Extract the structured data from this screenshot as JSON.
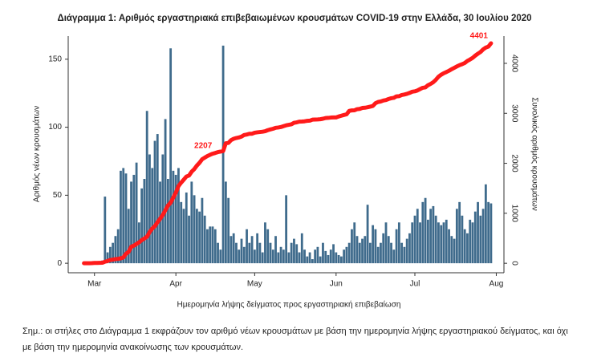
{
  "chart_data": {
    "type": "bar",
    "title": "Διάγραμμα 1: Αριθμός εργαστηριακά επιβεβαιωμένων κρουσμάτων COVID-19 στην Ελλάδα, 30 Ιουλίου 2020",
    "x_label": "Ημερομηνία λήψης δείγματος προς εργαστηριακή επιβεβαίωση",
    "y_label": "Αριθμός νέων κρουσμάτων",
    "y2_label": "Συνολικός αριθμός κρουσμάτων",
    "note": "Σημ.: οι στήλες στο Διάγραμμα 1 εκφράζουν τον αριθμό νέων κρουσμάτων με βάση την ημερομηνία λήψης εργαστηριακού δείγματος, και όχι με βάση την ημερομηνία ανακοίνωσης των κρουσμάτων.",
    "x": [
      56,
      57,
      58,
      59,
      60,
      61,
      62,
      63,
      64,
      65,
      66,
      67,
      68,
      69,
      70,
      71,
      72,
      73,
      74,
      75,
      76,
      77,
      78,
      79,
      80,
      81,
      82,
      83,
      84,
      85,
      86,
      87,
      88,
      89,
      90,
      91,
      92,
      93,
      94,
      95,
      96,
      97,
      98,
      99,
      100,
      101,
      102,
      103,
      104,
      105,
      106,
      107,
      108,
      109,
      110,
      111,
      112,
      113,
      114,
      115,
      116,
      117,
      118,
      119,
      120,
      121,
      122,
      123,
      124,
      125,
      126,
      127,
      128,
      129,
      130,
      131,
      132,
      133,
      134,
      135,
      136,
      137,
      138,
      139,
      140,
      141,
      142,
      143,
      144,
      145,
      146,
      147,
      148,
      149,
      150,
      151,
      152,
      153,
      154,
      155,
      156,
      157,
      158,
      159,
      160,
      161,
      162,
      163,
      164,
      165,
      166,
      167,
      168,
      169,
      170,
      171,
      172,
      173,
      174,
      175,
      176,
      177,
      178,
      179,
      180,
      181,
      182,
      183,
      184,
      185,
      186,
      187,
      188,
      189,
      190,
      191,
      192,
      193,
      194,
      195,
      196,
      197,
      198,
      199,
      200,
      201,
      202,
      203,
      204,
      205,
      206,
      207,
      208,
      209,
      210,
      211
    ],
    "series": [
      {
        "type": "bar",
        "color": "#3f6b8c",
        "values": [
          1,
          0,
          1,
          1,
          0,
          0,
          1,
          2,
          49,
          8,
          12,
          15,
          20,
          25,
          68,
          70,
          66,
          40,
          60,
          65,
          74,
          30,
          55,
          62,
          112,
          80,
          70,
          90,
          95,
          60,
          80,
          106,
          62,
          158,
          68,
          65,
          70,
          45,
          40,
          52,
          35,
          60,
          50,
          40,
          38,
          48,
          35,
          25,
          27,
          27,
          25,
          15,
          10,
          160,
          60,
          48,
          20,
          22,
          15,
          10,
          18,
          12,
          25,
          15,
          20,
          10,
          22,
          15,
          8,
          30,
          25,
          15,
          10,
          20,
          8,
          12,
          10,
          50,
          8,
          15,
          18,
          14,
          8,
          22,
          10,
          5,
          8,
          3,
          10,
          12,
          5,
          15,
          9,
          6,
          10,
          14,
          8,
          6,
          5,
          10,
          12,
          15,
          25,
          30,
          20,
          15,
          18,
          20,
          43,
          15,
          28,
          25,
          12,
          15,
          22,
          30,
          20,
          15,
          10,
          25,
          30,
          15,
          12,
          18,
          22,
          30,
          35,
          40,
          30,
          45,
          48,
          32,
          40,
          42,
          35,
          30,
          28,
          30,
          32,
          25,
          20,
          18,
          40,
          45,
          35,
          25,
          22,
          32,
          30,
          38,
          45,
          35,
          40,
          58,
          45,
          44
        ]
      },
      {
        "type": "line",
        "axis": "y2",
        "color": "#ff1a1a",
        "values": [
          0,
          0,
          1,
          3,
          7,
          7,
          9,
          10,
          31,
          45,
          66,
          73,
          84,
          89,
          99,
          117,
          190,
          228,
          331,
          352,
          387,
          418,
          464,
          495,
          530,
          624,
          695,
          743,
          821,
          892,
          966,
          1061,
          1156,
          1212,
          1314,
          1415,
          1544,
          1613,
          1673,
          1735,
          1755,
          1832,
          1884,
          1955,
          2011,
          2081,
          2114,
          2145,
          2170,
          2192,
          2207,
          2224,
          2235,
          2245,
          2401,
          2408,
          2463,
          2490,
          2506,
          2517,
          2534,
          2566,
          2576,
          2591,
          2591,
          2612,
          2620,
          2626,
          2632,
          2642,
          2663,
          2678,
          2691,
          2710,
          2716,
          2726,
          2744,
          2760,
          2770,
          2780,
          2810,
          2819,
          2834,
          2836,
          2840,
          2850,
          2853,
          2873,
          2876,
          2878,
          2882,
          2892,
          2906,
          2909,
          2915,
          2917,
          2918,
          2937,
          2952,
          2967,
          2980,
          3049,
          3058,
          3060,
          3083,
          3088,
          3108,
          3112,
          3121,
          3134,
          3148,
          3203,
          3227,
          3237,
          3256,
          3266,
          3287,
          3302,
          3310,
          3340,
          3343,
          3366,
          3376,
          3390,
          3409,
          3432,
          3440,
          3458,
          3486,
          3511,
          3519,
          3562,
          3589,
          3622,
          3672,
          3732,
          3772,
          3803,
          3826,
          3852,
          3883,
          3910,
          3939,
          3964,
          3983,
          4007,
          4048,
          4077,
          4110,
          4155,
          4193,
          4227,
          4279,
          4315,
          4336,
          4401
        ]
      }
    ],
    "annotations": [
      {
        "text": "2207",
        "x": 106
      },
      {
        "text": "4401",
        "x": 211
      }
    ],
    "xlim": [
      50,
      215
    ],
    "xticks": [
      {
        "value": 60,
        "label": "Mar"
      },
      {
        "value": 91,
        "label": "Apr"
      },
      {
        "value": 121,
        "label": "May"
      },
      {
        "value": 152,
        "label": "Jun"
      },
      {
        "value": 182,
        "label": "Jul"
      },
      {
        "value": 213,
        "label": "Aug"
      }
    ],
    "ylim": [
      -7,
      167
    ],
    "yticks": [
      0,
      50,
      100,
      150
    ],
    "y2lim": [
      -190,
      4545
    ],
    "y2ticks": [
      0,
      1000,
      2000,
      3000,
      4000
    ],
    "grid": false
  }
}
